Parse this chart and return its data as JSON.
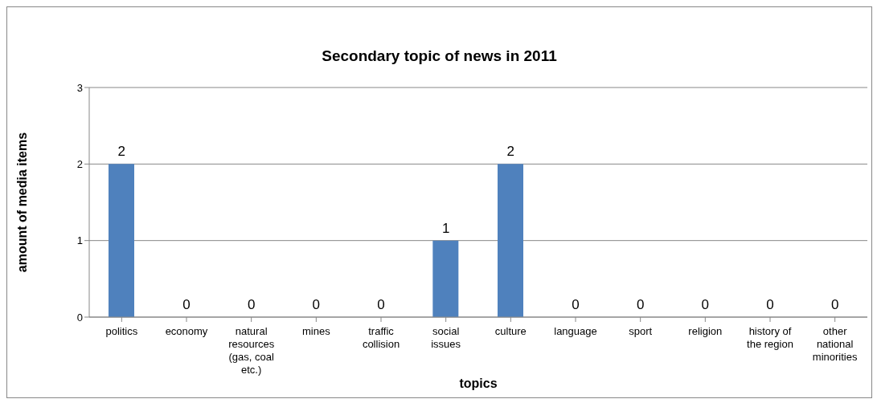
{
  "chart_data": {
    "type": "bar",
    "title": "Secondary topic of news in 2011",
    "xlabel": "topics",
    "ylabel": "amount of media items",
    "categories": [
      "politics",
      "economy",
      "natural resources (gas, coal etc.)",
      "mines",
      "traffic collision",
      "social issues",
      "culture",
      "language",
      "sport",
      "religion",
      "history of the region",
      "other national minorities"
    ],
    "values": [
      2,
      0,
      0,
      0,
      0,
      1,
      2,
      0,
      0,
      0,
      0,
      0
    ],
    "color": "#4f81bd",
    "ylim": [
      0,
      3
    ],
    "yticks": [
      0,
      1,
      2,
      3
    ],
    "grid": "y",
    "data_labels": true,
    "legend": false
  }
}
